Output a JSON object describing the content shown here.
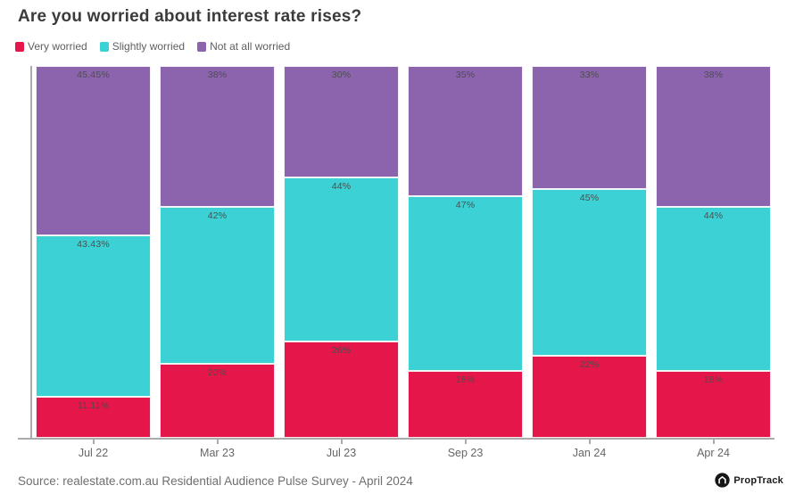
{
  "title": "Are you worried about interest rate rises?",
  "chart_data": {
    "type": "bar",
    "stacked": true,
    "percent_stacked": true,
    "title": "Are you worried about interest rate rises?",
    "categories": [
      "Jul 22",
      "Mar 23",
      "Jul 23",
      "Sep 23",
      "Jan 24",
      "Apr 24"
    ],
    "series": [
      {
        "name": "Very worried",
        "color": "#e4164a",
        "values": [
          11.11,
          20,
          26,
          18,
          22,
          18
        ],
        "labels": [
          "11.11%",
          "20%",
          "26%",
          "18%",
          "22%",
          "18%"
        ]
      },
      {
        "name": "Slightly worried",
        "color": "#3cd2d5",
        "values": [
          43.43,
          42,
          44,
          47,
          45,
          44
        ],
        "labels": [
          "43.43%",
          "42%",
          "44%",
          "47%",
          "45%",
          "44%"
        ]
      },
      {
        "name": "Not at all worried",
        "color": "#8c64ae",
        "values": [
          45.45,
          38,
          30,
          35,
          33,
          38
        ],
        "labels": [
          "45.45%",
          "38%",
          "30%",
          "35%",
          "33%",
          "38%"
        ]
      }
    ],
    "xlabel": "",
    "ylabel": "",
    "ylim": [
      0,
      100
    ],
    "grid": false,
    "legend_position": "top",
    "value_label_color": "#4d4d4d",
    "axis_color": "#ababab"
  },
  "footer": {
    "source": "Source: realestate.com.au Residential Audience Pulse Survey - April 2024",
    "brand": "PropTrack"
  }
}
